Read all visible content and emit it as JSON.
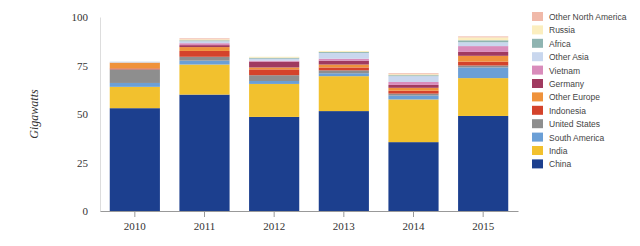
{
  "chart_data": {
    "type": "bar",
    "stacked": true,
    "grid": false,
    "legend": "right",
    "y_label": "Gigawatts",
    "categories": [
      "2010",
      "2011",
      "2012",
      "2013",
      "2014",
      "2015"
    ],
    "ylim": [
      0,
      100
    ],
    "yticks": [
      0,
      25,
      50,
      75,
      100
    ],
    "series": [
      {
        "name": "China",
        "color": "#1c3f8e",
        "values": [
          53,
          60,
          48.5,
          51.5,
          35.5,
          49
        ]
      },
      {
        "name": "India",
        "color": "#f2c12e",
        "values": [
          11,
          15.5,
          17,
          18,
          22,
          19.5
        ]
      },
      {
        "name": "South America",
        "color": "#6b9fd6",
        "values": [
          2,
          2,
          1.5,
          1.5,
          2,
          5.5
        ]
      },
      {
        "name": "United States",
        "color": "#8e8e8e",
        "values": [
          7,
          2,
          3,
          1.5,
          1,
          1
        ]
      },
      {
        "name": "Indonesia",
        "color": "#d4432b",
        "values": [
          0.5,
          3,
          3,
          1.5,
          1.5,
          2
        ]
      },
      {
        "name": "Other Europe",
        "color": "#ef923b",
        "values": [
          3,
          2,
          1,
          1.5,
          1.5,
          3
        ]
      },
      {
        "name": "Germany",
        "color": "#a03a60",
        "values": [
          0,
          1,
          3,
          2,
          1.5,
          2
        ]
      },
      {
        "name": "Vietnam",
        "color": "#d98cbb",
        "values": [
          0,
          1,
          0.5,
          1,
          1.5,
          3
        ]
      },
      {
        "name": "Other Asia",
        "color": "#c9d7ee",
        "values": [
          0.5,
          1,
          1,
          3,
          3,
          2
        ]
      },
      {
        "name": "Africa",
        "color": "#8fb4b1",
        "values": [
          0,
          0.5,
          0.5,
          0.5,
          0.5,
          1
        ]
      },
      {
        "name": "Russia",
        "color": "#fbeebf",
        "values": [
          0,
          0.5,
          0.5,
          0.5,
          0.5,
          1.5
        ]
      },
      {
        "name": "Other North America",
        "color": "#f0b9a9",
        "values": [
          0,
          0.5,
          0,
          0,
          0.5,
          0.5
        ]
      }
    ]
  }
}
